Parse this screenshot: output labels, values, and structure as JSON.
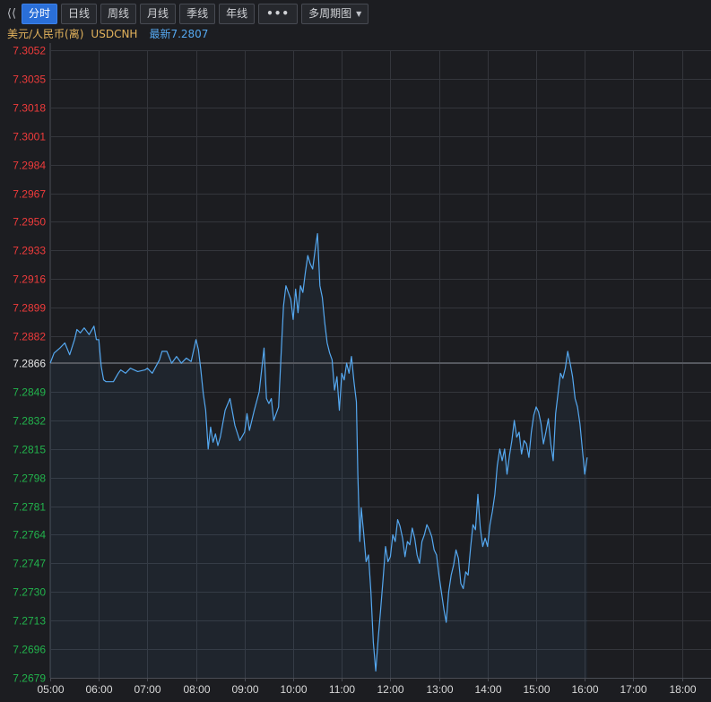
{
  "toolbar": {
    "collapse_icon": "double-chevron-left-icon",
    "tabs": [
      {
        "label": "分时",
        "active": true
      },
      {
        "label": "日线",
        "active": false
      },
      {
        "label": "周线",
        "active": false
      },
      {
        "label": "月线",
        "active": false
      },
      {
        "label": "季线",
        "active": false
      },
      {
        "label": "年线",
        "active": false
      }
    ],
    "more_label": "•••",
    "multi_period_label": "多周期图"
  },
  "info": {
    "name": "美元/人民币(离)",
    "code": "USDCNH",
    "latest": "最新7.2807"
  },
  "colors": {
    "background": "#1c1d21",
    "line": "#55a8f0",
    "up": "#ef3b3b",
    "down": "#22b34c",
    "reference": "#e6e6e6",
    "grid": "#34363c"
  },
  "chart_data": {
    "type": "line",
    "title": "",
    "xlabel": "",
    "ylabel": "",
    "reference_price": 7.2866,
    "ylim": [
      7.2679,
      7.3052
    ],
    "y_ticks": [
      "7.3052",
      "7.3035",
      "7.3018",
      "7.3001",
      "7.2984",
      "7.2967",
      "7.2950",
      "7.2933",
      "7.2916",
      "7.2899",
      "7.2882",
      "7.2866",
      "7.2849",
      "7.2832",
      "7.2815",
      "7.2798",
      "7.2781",
      "7.2764",
      "7.2747",
      "7.2730",
      "7.2713",
      "7.2696",
      "7.2679"
    ],
    "x_ticks": [
      "05:00",
      "06:00",
      "07:00",
      "08:00",
      "09:00",
      "10:00",
      "11:00",
      "12:00",
      "13:00",
      "14:00",
      "15:00",
      "16:00",
      "17:00",
      "18:00"
    ],
    "x_range_hours": [
      5,
      18.5
    ],
    "grid": true,
    "series": [
      {
        "x": [
          5.0,
          5.08,
          5.2,
          5.3,
          5.4,
          5.5,
          5.55,
          5.62,
          5.7,
          5.8,
          5.9,
          5.95,
          6.0,
          6.05,
          6.1,
          6.15,
          6.3,
          6.4,
          6.45,
          6.55,
          6.65,
          6.8,
          6.95,
          7.0,
          7.1,
          7.25,
          7.3,
          7.4,
          7.5,
          7.6,
          7.7,
          7.8,
          7.9,
          8.0,
          8.05,
          8.1,
          8.15,
          8.2,
          8.25,
          8.3,
          8.35,
          8.4,
          8.45,
          8.5,
          8.6,
          8.7,
          8.8,
          8.9,
          9.0,
          9.05,
          9.1,
          9.2,
          9.3,
          9.4,
          9.45,
          9.5,
          9.55,
          9.6,
          9.7,
          9.75,
          9.8,
          9.85,
          9.95,
          10.0,
          10.05,
          10.1,
          10.15,
          10.2,
          10.25,
          10.3,
          10.35,
          10.4,
          10.45,
          10.5,
          10.55,
          10.6,
          10.65,
          10.7,
          10.75,
          10.8,
          10.85,
          10.9,
          10.95,
          11.0,
          11.05,
          11.1,
          11.15,
          11.2,
          11.25,
          11.3,
          11.33,
          11.37,
          11.4,
          11.45,
          11.5,
          11.55,
          11.6,
          11.65,
          11.7,
          11.75,
          11.8,
          11.85,
          11.9,
          11.95,
          12.0,
          12.05,
          12.1,
          12.15,
          12.2,
          12.25,
          12.3,
          12.35,
          12.4,
          12.45,
          12.5,
          12.55,
          12.6,
          12.65,
          12.7,
          12.75,
          12.8,
          12.85,
          12.9,
          12.95,
          13.0,
          13.05,
          13.1,
          13.15,
          13.2,
          13.25,
          13.3,
          13.35,
          13.4,
          13.45,
          13.5,
          13.55,
          13.6,
          13.65,
          13.7,
          13.75,
          13.8,
          13.85,
          13.9,
          13.95,
          14.0,
          14.05,
          14.1,
          14.15,
          14.2,
          14.25,
          14.3,
          14.35,
          14.4,
          14.45,
          14.5,
          14.55,
          14.6,
          14.65,
          14.7,
          14.75,
          14.8,
          14.85,
          14.9,
          14.95,
          15.0,
          15.05,
          15.1,
          15.15,
          15.2,
          15.25,
          15.3,
          15.35,
          15.4,
          15.45,
          15.5,
          15.55,
          15.6,
          15.65,
          15.7,
          15.75,
          15.8,
          15.85,
          15.9,
          15.95,
          16.0,
          16.05
        ],
        "y": [
          7.2866,
          7.2872,
          7.2875,
          7.2878,
          7.2871,
          7.288,
          7.2886,
          7.2884,
          7.2887,
          7.2883,
          7.2888,
          7.288,
          7.288,
          7.2864,
          7.2856,
          7.2855,
          7.2855,
          7.286,
          7.2862,
          7.286,
          7.2863,
          7.2861,
          7.2862,
          7.2863,
          7.286,
          7.2868,
          7.2873,
          7.2873,
          7.2866,
          7.287,
          7.2866,
          7.2869,
          7.2867,
          7.288,
          7.2874,
          7.2862,
          7.2848,
          7.2838,
          7.2815,
          7.2828,
          7.2819,
          7.2824,
          7.2817,
          7.2822,
          7.2838,
          7.2845,
          7.2829,
          7.282,
          7.2825,
          7.2836,
          7.2826,
          7.2838,
          7.2849,
          7.2875,
          7.2845,
          7.2842,
          7.2845,
          7.2832,
          7.284,
          7.287,
          7.29,
          7.2912,
          7.2904,
          7.2892,
          7.291,
          7.2896,
          7.2912,
          7.2908,
          7.292,
          7.293,
          7.2925,
          7.2922,
          7.2933,
          7.2943,
          7.2912,
          7.2905,
          7.289,
          7.2878,
          7.2872,
          7.2868,
          7.285,
          7.2858,
          7.2838,
          7.286,
          7.2856,
          7.2866,
          7.286,
          7.287,
          7.2855,
          7.2843,
          7.28,
          7.276,
          7.278,
          7.2765,
          7.2748,
          7.2752,
          7.273,
          7.27,
          7.2683,
          7.2703,
          7.272,
          7.2738,
          7.2757,
          7.2748,
          7.2751,
          7.2764,
          7.276,
          7.2773,
          7.2769,
          7.2762,
          7.2751,
          7.276,
          7.2758,
          7.2768,
          7.2762,
          7.2752,
          7.2747,
          7.276,
          7.2764,
          7.277,
          7.2767,
          7.2763,
          7.2755,
          7.2752,
          7.274,
          7.273,
          7.272,
          7.2712,
          7.273,
          7.274,
          7.2746,
          7.2755,
          7.275,
          7.2735,
          7.2732,
          7.2742,
          7.274,
          7.2756,
          7.277,
          7.2767,
          7.2788,
          7.2768,
          7.2757,
          7.2762,
          7.2757,
          7.277,
          7.2778,
          7.2788,
          7.2805,
          7.2815,
          7.2808,
          7.2815,
          7.28,
          7.2811,
          7.282,
          7.2832,
          7.2822,
          7.2825,
          7.2812,
          7.282,
          7.2818,
          7.281,
          7.2825,
          7.2835,
          7.284,
          7.2837,
          7.283,
          7.2818,
          7.2825,
          7.2833,
          7.2818,
          7.2808,
          7.2836,
          7.2848,
          7.286,
          7.2857,
          7.2863,
          7.2873,
          7.2866,
          7.2858,
          7.2845,
          7.284,
          7.283,
          7.2815,
          7.28,
          7.281
        ]
      }
    ]
  }
}
